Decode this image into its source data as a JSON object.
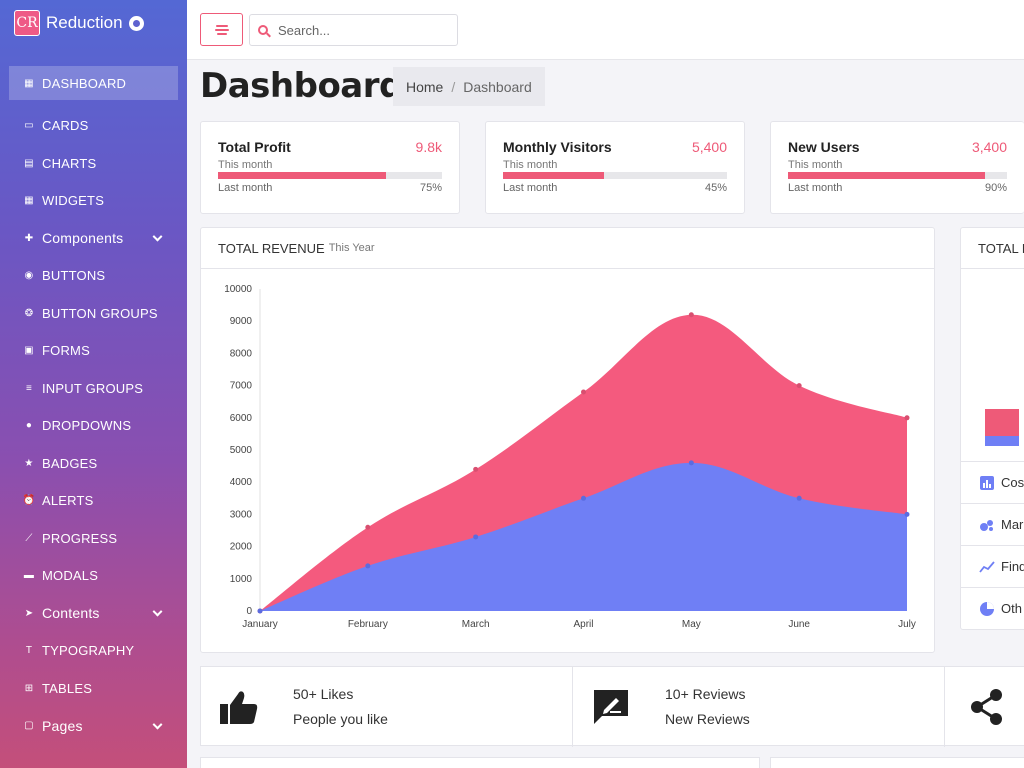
{
  "brand": {
    "logo": "CR",
    "name": "Reduction",
    "github_icon": "github-icon"
  },
  "sidebar": {
    "items": [
      {
        "label": "DASHBOARD",
        "icon": "dashboard-icon",
        "active": true
      },
      {
        "label": "CARDS",
        "icon": "cards-icon"
      },
      {
        "label": "CHARTS",
        "icon": "charts-icon"
      },
      {
        "label": "WIDGETS",
        "icon": "widgets-icon"
      },
      {
        "label": "Components",
        "icon": "puzzle-icon",
        "expandable": true
      },
      {
        "label": "BUTTONS",
        "icon": "radio-button-icon"
      },
      {
        "label": "BUTTON GROUPS",
        "icon": "group-icon"
      },
      {
        "label": "FORMS",
        "icon": "form-icon"
      },
      {
        "label": "INPUT GROUPS",
        "icon": "list-icon"
      },
      {
        "label": "DROPDOWNS",
        "icon": "dropdown-icon"
      },
      {
        "label": "BADGES",
        "icon": "star-icon"
      },
      {
        "label": "ALERTS",
        "icon": "alarm-icon"
      },
      {
        "label": "PROGRESS",
        "icon": "pen-icon"
      },
      {
        "label": "MODALS",
        "icon": "modal-icon"
      },
      {
        "label": "Contents",
        "icon": "send-icon",
        "expandable": true
      },
      {
        "label": "TYPOGRAPHY",
        "icon": "text-icon"
      },
      {
        "label": "TABLES",
        "icon": "table-icon"
      },
      {
        "label": "Pages",
        "icon": "pages-icon",
        "expandable": true
      }
    ]
  },
  "topbar": {
    "search_placeholder": "Search..."
  },
  "page": {
    "title": "Dashboard",
    "breadcrumb": {
      "home": "Home",
      "separator": "/",
      "current": "Dashboard"
    }
  },
  "stats": [
    {
      "title": "Total Profit",
      "value": "9.8k",
      "subtitle": "This month",
      "footer": "Last month",
      "percent_label": "75%",
      "percent": 75
    },
    {
      "title": "Monthly Visitors",
      "value": "5,400",
      "subtitle": "This month",
      "footer": "Last month",
      "percent_label": "45%",
      "percent": 45
    },
    {
      "title": "New Users",
      "value": "3,400",
      "subtitle": "This month",
      "footer": "Last month",
      "percent_label": "90%",
      "percent": 90
    }
  ],
  "revenue": {
    "title": "TOTAL REVENUE",
    "subtitle": "This Year"
  },
  "right_card": {
    "title": "TOTAL E",
    "rows": [
      {
        "label": "Cos",
        "icon": "bar-chart-icon"
      },
      {
        "label": "Mar",
        "icon": "bubbles-icon"
      },
      {
        "label": "Find",
        "icon": "trend-line-icon"
      },
      {
        "label": "Oth",
        "icon": "pie-chart-icon"
      }
    ]
  },
  "bottom_tiles": [
    {
      "line1": "50+ Likes",
      "line2": "People you like",
      "icon": "thumbs-up-icon"
    },
    {
      "line1": "10+ Reviews",
      "line2": "New Reviews",
      "icon": "review-icon"
    },
    {
      "line1": "",
      "line2": "",
      "icon": "share-icon"
    }
  ],
  "colors": {
    "accent": "#ee5a78",
    "series_top": "#f45a7e",
    "series_bottom": "#6f7ff5"
  },
  "chart_data": {
    "type": "area",
    "title": "",
    "x": [
      "January",
      "February",
      "March",
      "April",
      "May",
      "June",
      "July"
    ],
    "ylim": [
      0,
      10000
    ],
    "yticks": [
      0,
      1000,
      2000,
      3000,
      4000,
      5000,
      6000,
      7000,
      8000,
      9000,
      10000
    ],
    "stacked": false,
    "series": [
      {
        "name": "",
        "color": "#f45a7e",
        "values": [
          0,
          2600,
          4400,
          6800,
          9200,
          7000,
          6000
        ]
      },
      {
        "name": "",
        "color": "#6f7ff5",
        "values": [
          0,
          1400,
          2300,
          3500,
          4600,
          3500,
          3000
        ]
      }
    ]
  }
}
